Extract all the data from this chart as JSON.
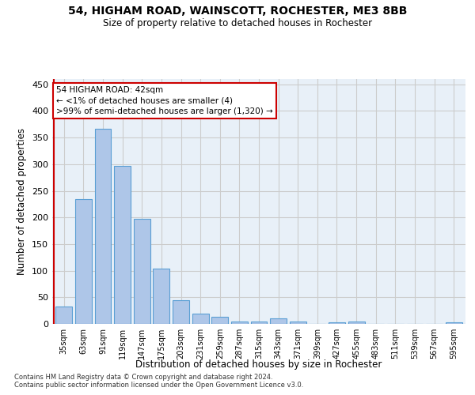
{
  "title1": "54, HIGHAM ROAD, WAINSCOTT, ROCHESTER, ME3 8BB",
  "title2": "Size of property relative to detached houses in Rochester",
  "xlabel": "Distribution of detached houses by size in Rochester",
  "ylabel": "Number of detached properties",
  "footnote1": "Contains HM Land Registry data © Crown copyright and database right 2024.",
  "footnote2": "Contains public sector information licensed under the Open Government Licence v3.0.",
  "annotation_line1": "54 HIGHAM ROAD: 42sqm",
  "annotation_line2": "← <1% of detached houses are smaller (4)",
  "annotation_line3": ">99% of semi-detached houses are larger (1,320) →",
  "bar_categories": [
    "35sqm",
    "63sqm",
    "91sqm",
    "119sqm",
    "147sqm",
    "175sqm",
    "203sqm",
    "231sqm",
    "259sqm",
    "287sqm",
    "315sqm",
    "343sqm",
    "371sqm",
    "399sqm",
    "427sqm",
    "455sqm",
    "483sqm",
    "511sqm",
    "539sqm",
    "567sqm",
    "595sqm"
  ],
  "bar_values": [
    33,
    235,
    367,
    297,
    198,
    104,
    45,
    20,
    13,
    5,
    5,
    10,
    5,
    0,
    3,
    5,
    0,
    0,
    0,
    0,
    3
  ],
  "bar_color": "#aec6e8",
  "bar_edge_color": "#5a9fd4",
  "highlight_color": "#cc0000",
  "annotation_box_color": "#cc0000",
  "grid_color": "#cccccc",
  "background_color": "#e8f0f8",
  "ylim": [
    0,
    460
  ],
  "yticks": [
    0,
    50,
    100,
    150,
    200,
    250,
    300,
    350,
    400,
    450
  ]
}
